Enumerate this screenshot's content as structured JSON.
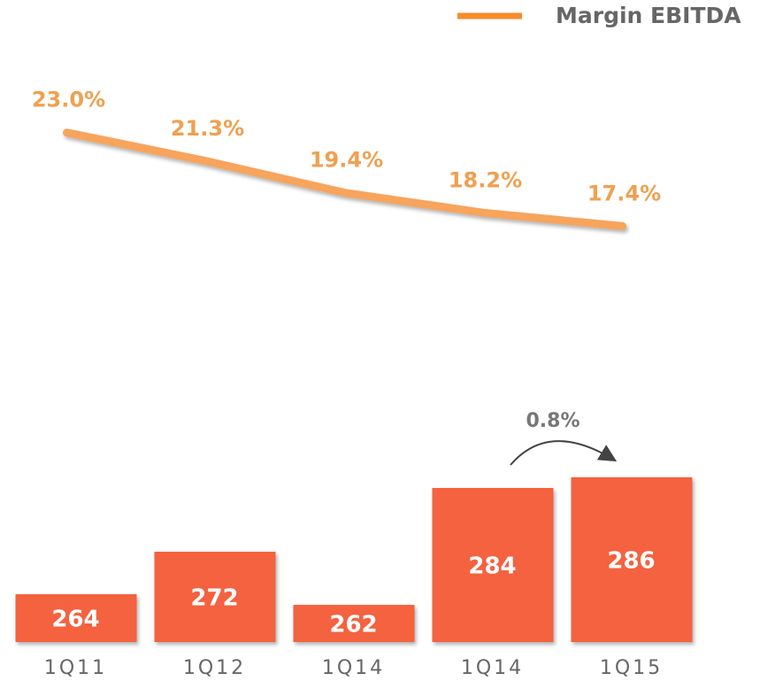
{
  "chart_data": {
    "type": "bar",
    "categories": [
      "1Q11",
      "1Q12",
      "1Q14",
      "1Q14",
      "1Q15"
    ],
    "series": [
      {
        "type": "bar",
        "color": "#f4623f",
        "values": [
          264,
          272,
          262,
          284,
          286
        ]
      },
      {
        "name": "Margin EBITDA",
        "type": "line",
        "axis": "y2",
        "color": "#f7a45c",
        "values": [
          23.0,
          21.3,
          19.4,
          18.2,
          17.4
        ],
        "value_labels": [
          "23.0%",
          "21.3%",
          "19.4%",
          "18.2%",
          "17.4%"
        ]
      }
    ],
    "ylim": [
      255,
      300
    ],
    "y2lim": [
      10,
      25
    ],
    "annotation": "0.8%",
    "legend": "top-right"
  }
}
